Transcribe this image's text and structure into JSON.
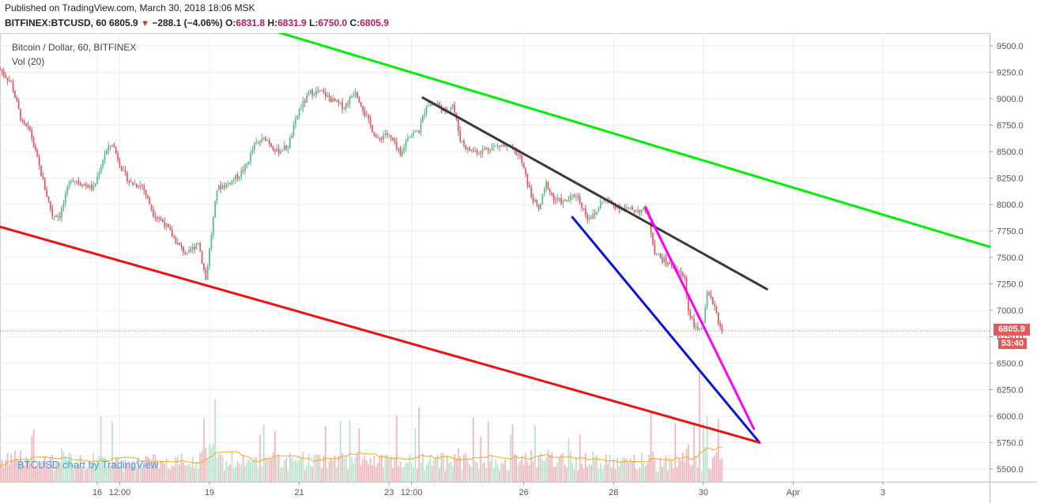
{
  "header": {
    "published": "Published on TradingView.com, March 30, 2018 18:06 MSK",
    "symbol": "BITFINEX:BTCUSD, 60",
    "last": "6805.9",
    "change": "−288.1 (−4.06%)",
    "open_label": "O:",
    "open": "6831.8",
    "high_label": "H:",
    "high": "6831.9",
    "low_label": "L:",
    "low": "6750.0",
    "close_label": "C:",
    "close": "6805.9"
  },
  "legend": {
    "title": "Bitcoin / Dollar, 60, BITFINEX",
    "volume": "Vol (20)"
  },
  "watermark": "BTCUSD chart by TradingView",
  "price_tag": "6805.9",
  "time_tag": "53:40",
  "colors": {
    "up": "#53b987",
    "down": "#eb4d5c",
    "green_line": "#00ee00",
    "black_line": "#3a3a3a",
    "blue_line": "#0a14d8",
    "magenta_line": "#ff00ff",
    "red_line": "#ee1111",
    "ma": "#f5a623"
  },
  "chart_data": {
    "type": "candlestick",
    "y_ticks": [
      5500,
      5750,
      6000,
      6250,
      6500,
      6750,
      7000,
      7250,
      7500,
      7750,
      8000,
      8250,
      8500,
      8750,
      9000,
      9250,
      9500
    ],
    "y_tick_labels": [
      "5500.0",
      "5750.0",
      "6000.0",
      "6250.0",
      "6500.0",
      "6750.0",
      "7000.0",
      "7250.0",
      "7500.0",
      "7750.0",
      "8000.0",
      "8250.0",
      "8500.0",
      "8750.0",
      "9000.0",
      "9250.0",
      "9500.0"
    ],
    "ylim": [
      5380,
      9620
    ],
    "x_ticks": [
      {
        "label": "16",
        "t": 36
      },
      {
        "label": "12:00",
        "t": 48
      },
      {
        "label": "19",
        "t": 96
      },
      {
        "label": "21",
        "t": 144
      },
      {
        "label": "23",
        "t": 192
      },
      {
        "label": "12:00",
        "t": 204
      },
      {
        "label": "26",
        "t": 264
      },
      {
        "label": "28",
        "t": 312
      },
      {
        "label": "30",
        "t": 360
      },
      {
        "label": "Apr",
        "t": 408
      },
      {
        "label": "3",
        "t": 456
      }
    ],
    "xlim": [
      -16,
      513
    ],
    "close_keypoints": [
      [
        -16,
        9280
      ],
      [
        -10,
        9150
      ],
      [
        -4,
        8760
      ],
      [
        0,
        8700
      ],
      [
        8,
        8150
      ],
      [
        12,
        7900
      ],
      [
        16,
        7900
      ],
      [
        22,
        8250
      ],
      [
        28,
        8200
      ],
      [
        34,
        8150
      ],
      [
        40,
        8480
      ],
      [
        44,
        8580
      ],
      [
        50,
        8300
      ],
      [
        54,
        8200
      ],
      [
        60,
        8180
      ],
      [
        66,
        7920
      ],
      [
        72,
        7820
      ],
      [
        78,
        7650
      ],
      [
        84,
        7520
      ],
      [
        90,
        7650
      ],
      [
        94,
        7290
      ],
      [
        100,
        8150
      ],
      [
        106,
        8200
      ],
      [
        112,
        8280
      ],
      [
        116,
        8380
      ],
      [
        120,
        8560
      ],
      [
        126,
        8630
      ],
      [
        132,
        8500
      ],
      [
        138,
        8550
      ],
      [
        144,
        8900
      ],
      [
        150,
        9060
      ],
      [
        156,
        9060
      ],
      [
        162,
        8980
      ],
      [
        168,
        8920
      ],
      [
        174,
        9080
      ],
      [
        180,
        8820
      ],
      [
        186,
        8600
      ],
      [
        190,
        8680
      ],
      [
        194,
        8600
      ],
      [
        198,
        8450
      ],
      [
        202,
        8650
      ],
      [
        208,
        8700
      ],
      [
        212,
        8950
      ],
      [
        218,
        8950
      ],
      [
        222,
        8870
      ],
      [
        226,
        8950
      ],
      [
        230,
        8620
      ],
      [
        234,
        8520
      ],
      [
        240,
        8500
      ],
      [
        246,
        8540
      ],
      [
        252,
        8560
      ],
      [
        258,
        8520
      ],
      [
        262,
        8450
      ],
      [
        268,
        8080
      ],
      [
        272,
        7950
      ],
      [
        276,
        8200
      ],
      [
        280,
        8050
      ],
      [
        286,
        8020
      ],
      [
        292,
        8100
      ],
      [
        298,
        7880
      ],
      [
        302,
        7900
      ],
      [
        306,
        8050
      ],
      [
        312,
        8000
      ],
      [
        318,
        7960
      ],
      [
        322,
        7950
      ],
      [
        330,
        7940
      ],
      [
        334,
        7550
      ],
      [
        338,
        7480
      ],
      [
        344,
        7420
      ],
      [
        350,
        7300
      ],
      [
        352,
        7000
      ],
      [
        356,
        6820
      ],
      [
        360,
        6850
      ],
      [
        362,
        7150
      ],
      [
        366,
        7050
      ],
      [
        368,
        6900
      ],
      [
        370,
        6806
      ]
    ],
    "trendlines": [
      {
        "color": "green_line",
        "points": [
          [
            125,
            9670
          ],
          [
            513,
            7600
          ]
        ]
      },
      {
        "color": "black_line",
        "points": [
          [
            210,
            9010
          ],
          [
            394,
            7200
          ]
        ]
      },
      {
        "color": "blue_line",
        "points": [
          [
            290,
            7880
          ],
          [
            390,
            5750
          ]
        ]
      },
      {
        "color": "magenta_line",
        "points": [
          [
            329,
            7970
          ],
          [
            387,
            5880
          ]
        ]
      },
      {
        "color": "red_line",
        "points": [
          [
            -16,
            7790
          ],
          [
            390,
            5750
          ]
        ]
      }
    ],
    "last_price": 6805.9,
    "volume": {
      "series": "Vol (20)",
      "max_spike_index": 358,
      "ma_end": 5680
    }
  }
}
